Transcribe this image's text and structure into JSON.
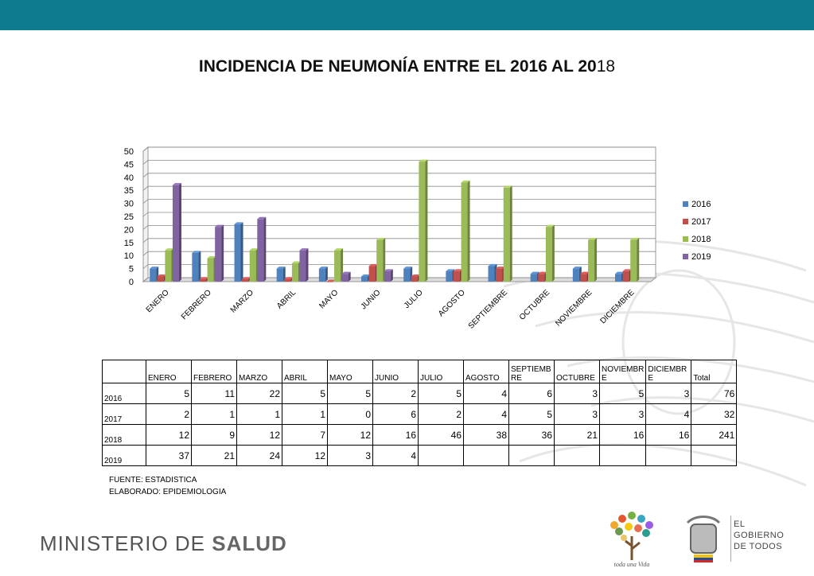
{
  "title": {
    "main": "INCIDENCIA DE NEUMONÍA ENTRE EL 2016 AL 20",
    "tail": "18"
  },
  "chart_data": {
    "type": "bar",
    "categories": [
      "ENERO",
      "FEBRERO",
      "MARZO",
      "ABRIL",
      "MAYO",
      "JUNIO",
      "JULIO",
      "AGOSTO",
      "SEPTIEMBRE",
      "OCTUBRE",
      "NOVIEMBRE",
      "DICIEMBRE"
    ],
    "series": [
      {
        "name": "2016",
        "color": "#4f81bd",
        "values": [
          5,
          11,
          22,
          5,
          5,
          2,
          5,
          4,
          6,
          3,
          5,
          3
        ]
      },
      {
        "name": "2017",
        "color": "#c0504d",
        "values": [
          2,
          1,
          1,
          1,
          0,
          6,
          2,
          4,
          5,
          3,
          3,
          4
        ]
      },
      {
        "name": "2018",
        "color": "#9bbb59",
        "values": [
          12,
          9,
          12,
          7,
          12,
          16,
          46,
          38,
          36,
          21,
          16,
          16
        ]
      },
      {
        "name": "2019",
        "color": "#8064a2",
        "values": [
          37,
          21,
          24,
          12,
          3,
          4,
          null,
          null,
          null,
          null,
          null,
          null
        ]
      }
    ],
    "y_ticks": [
      "0",
      "5",
      "10",
      "15",
      "20",
      "25",
      "30",
      "35",
      "40",
      "45",
      "50"
    ],
    "ylim": [
      0,
      50
    ],
    "grid": true,
    "legend": "right"
  },
  "table": {
    "headers": [
      "",
      "ENERO",
      "FEBRERO",
      "MARZO",
      "ABRIL",
      "MAYO",
      "JUNIO",
      "JULIO",
      "AGOSTO",
      "SEPTIEMB RE",
      "OCTUBRE",
      "NOVIEMBR E",
      "DICIEMBR E",
      "Total"
    ],
    "rows": [
      {
        "label": "2016",
        "cells": [
          "5",
          "11",
          "22",
          "5",
          "5",
          "2",
          "5",
          "4",
          "6",
          "3",
          "5",
          "3",
          "76"
        ]
      },
      {
        "label": "2017",
        "cells": [
          "2",
          "1",
          "1",
          "1",
          "0",
          "6",
          "2",
          "4",
          "5",
          "3",
          "3",
          "4",
          "32"
        ]
      },
      {
        "label": "2018",
        "cells": [
          "12",
          "9",
          "12",
          "7",
          "12",
          "16",
          "46",
          "38",
          "36",
          "21",
          "16",
          "16",
          "241"
        ]
      },
      {
        "label": "2019",
        "cells": [
          "37",
          "21",
          "24",
          "12",
          "3",
          "4",
          "",
          "",
          "",
          "",
          "",
          "",
          ""
        ]
      }
    ]
  },
  "notes": {
    "fuente": "FUENTE: ESTADISTICA",
    "elaborado": "ELABORADO: EPIDEMIOLOGIA"
  },
  "footer": {
    "ministerio": "MINISTERIO DE ",
    "salud": "SALUD",
    "gobierno": [
      "EL",
      "GOBIERNO",
      "DE TODOS"
    ],
    "vida_logo_text": "toda una Vida"
  },
  "colors": {
    "topbar": "#0e7b8f"
  }
}
